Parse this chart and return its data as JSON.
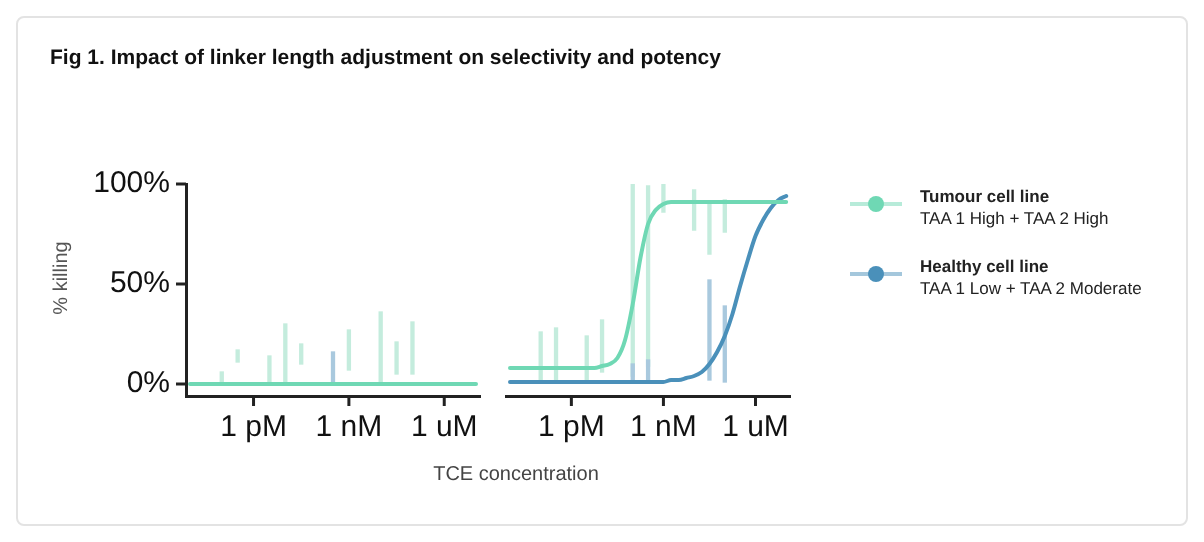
{
  "chart_data": [
    {
      "type": "line",
      "title": "Fig 1. Impact of linker length adjustment on selectivity and potency",
      "xlabel": "TCE concentration",
      "ylabel": "% killing",
      "categories": [
        null,
        null,
        null,
        null,
        null,
        null,
        null,
        null,
        "1 pM",
        null,
        null,
        null,
        null,
        null,
        null,
        null,
        null,
        null,
        null,
        null,
        "1 nM",
        null,
        null,
        null,
        null,
        null,
        null,
        null,
        null,
        null,
        null,
        null,
        "1 uM",
        null,
        null,
        null,
        null
      ],
      "ylim": [
        -6,
        100
      ],
      "yticks": [
        {
          "value": 0,
          "label": "0%"
        },
        {
          "value": 50,
          "label": "50%"
        },
        {
          "value": 100,
          "label": "100%"
        }
      ],
      "grid": false,
      "series": [
        {
          "type": "line",
          "color": "#6fd8b4",
          "values": [
            0,
            0,
            0,
            0,
            0,
            0,
            0,
            0,
            0,
            0,
            0,
            0,
            0,
            0,
            0,
            0,
            0,
            0,
            0,
            0,
            0,
            0,
            0,
            0,
            0,
            0,
            0,
            0,
            0,
            0,
            0,
            0,
            0,
            0,
            0,
            0,
            0
          ]
        },
        {
          "type": "bar",
          "color": "#c4ecdd",
          "base": [
            null,
            null,
            null,
            null,
            0,
            null,
            11,
            null,
            null,
            null,
            0,
            null,
            0,
            null,
            10,
            null,
            null,
            null,
            null,
            null,
            7,
            null,
            null,
            null,
            0,
            null,
            5,
            null,
            5,
            null,
            null,
            null,
            null,
            null,
            null,
            null,
            null
          ],
          "values": [
            null,
            null,
            null,
            null,
            6,
            null,
            6,
            null,
            null,
            null,
            14,
            null,
            30,
            null,
            10,
            null,
            null,
            null,
            null,
            null,
            20,
            null,
            null,
            null,
            36,
            null,
            16,
            null,
            26,
            null,
            null,
            null,
            null,
            null,
            null,
            null,
            null
          ]
        },
        {
          "type": "bar",
          "color": "#a9c9de",
          "base": [
            null,
            null,
            null,
            null,
            null,
            null,
            null,
            null,
            null,
            null,
            null,
            null,
            null,
            null,
            null,
            null,
            null,
            null,
            0,
            null,
            null,
            null,
            null,
            null,
            null,
            null,
            null,
            null,
            null,
            null,
            null,
            null,
            null,
            null,
            null,
            null,
            null
          ],
          "values": [
            null,
            null,
            null,
            null,
            null,
            null,
            null,
            null,
            null,
            null,
            null,
            null,
            null,
            null,
            null,
            null,
            null,
            null,
            16,
            null,
            null,
            null,
            null,
            null,
            null,
            null,
            null,
            null,
            null,
            null,
            null,
            null,
            null,
            null,
            null,
            null,
            null
          ]
        }
      ]
    },
    {
      "type": "line",
      "categories": [
        null,
        null,
        null,
        null,
        null,
        null,
        null,
        null,
        "1 pM",
        null,
        null,
        null,
        null,
        null,
        null,
        null,
        null,
        null,
        null,
        null,
        "1 nM",
        null,
        null,
        null,
        null,
        null,
        null,
        null,
        null,
        null,
        null,
        null,
        "1 uM",
        null,
        null,
        null,
        null
      ],
      "ylim": [
        -6,
        100
      ],
      "tick_labels": "x",
      "grid": false,
      "legend": "right",
      "series": [
        {
          "type": "bar",
          "color": "#c4ecdd",
          "base": [
            null,
            null,
            null,
            null,
            2,
            null,
            2,
            null,
            null,
            null,
            2,
            null,
            6,
            null,
            null,
            null,
            4,
            null,
            9,
            null,
            86,
            null,
            null,
            null,
            77,
            null,
            65,
            null,
            76,
            null,
            null,
            null,
            null,
            null,
            null,
            null,
            null
          ],
          "values": [
            null,
            null,
            null,
            null,
            24,
            null,
            26,
            null,
            null,
            null,
            22,
            null,
            26,
            null,
            null,
            null,
            96,
            null,
            90,
            null,
            14,
            null,
            null,
            null,
            20,
            null,
            26,
            null,
            16,
            null,
            null,
            null,
            null,
            null,
            null,
            null,
            null
          ]
        },
        {
          "type": "bar",
          "color": "#a9c9de",
          "base": [
            null,
            null,
            null,
            null,
            null,
            null,
            null,
            null,
            null,
            null,
            null,
            null,
            null,
            null,
            null,
            null,
            2,
            null,
            2,
            null,
            null,
            null,
            null,
            null,
            null,
            null,
            2,
            null,
            1,
            null,
            null,
            null,
            null,
            null,
            null,
            null,
            null
          ],
          "values": [
            null,
            null,
            null,
            null,
            null,
            null,
            null,
            null,
            null,
            null,
            null,
            null,
            null,
            null,
            null,
            null,
            8,
            null,
            10,
            null,
            null,
            null,
            null,
            null,
            null,
            null,
            50,
            null,
            38,
            null,
            null,
            null,
            null,
            null,
            null,
            null,
            null
          ]
        },
        {
          "type": "line",
          "name": "Tumour cell line\nTAA 1 High + TAA 2 High",
          "color": "#6fd8b4",
          "values": [
            8,
            8,
            8,
            8,
            8,
            8,
            8,
            8,
            8,
            8,
            8,
            8,
            9,
            10,
            13,
            22,
            40,
            63,
            80,
            87,
            90,
            91,
            91,
            91,
            91,
            91,
            91,
            91,
            91,
            91,
            91,
            91,
            91,
            91,
            91,
            91,
            91
          ]
        },
        {
          "type": "line",
          "name": "Healthy cell line\nTAA 1 Low + TAA 2 Moderate",
          "color": "#4a90ba",
          "values": [
            1,
            1,
            1,
            1,
            1,
            1,
            1,
            1,
            1,
            1,
            1,
            1,
            1,
            1,
            1,
            1,
            1,
            1,
            1,
            1,
            1,
            2,
            2,
            3,
            4,
            6,
            10,
            16,
            24,
            35,
            49,
            62,
            74,
            82,
            88,
            92,
            94
          ]
        }
      ]
    }
  ]
}
